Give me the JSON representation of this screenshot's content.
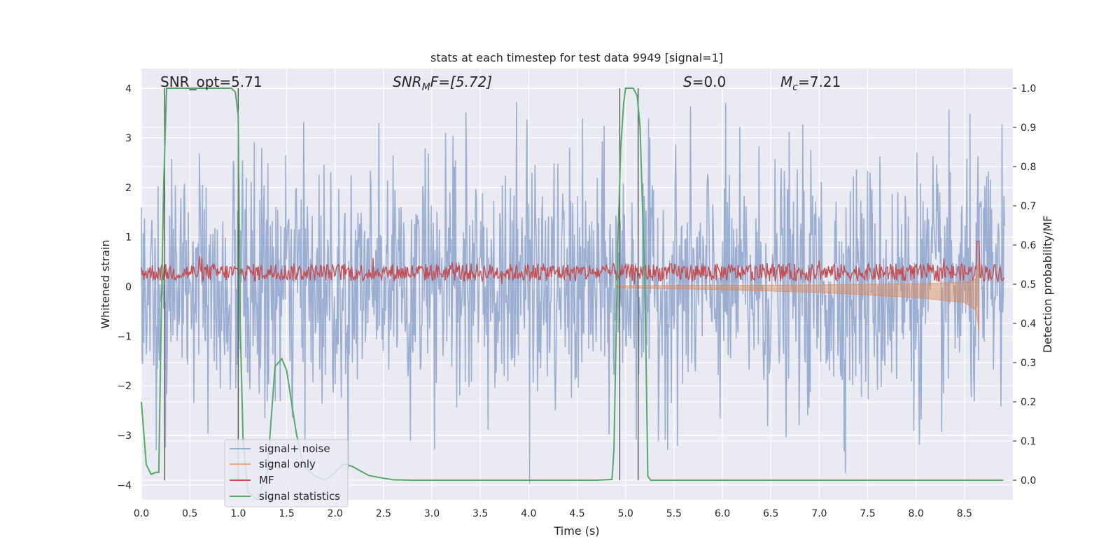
{
  "chart_data": {
    "type": "line",
    "title": "stats at each timestep for test data 9949 [signal=1]",
    "xlabel": "Time (s)",
    "ylabel_left": "Whitened strain",
    "ylabel_right": "Detection probability/MF",
    "xlim": [
      0.0,
      9.0
    ],
    "ylim_left": [
      -4.3,
      4.4
    ],
    "ylim_right": [
      -0.05,
      1.05
    ],
    "xticks": [
      "0.0",
      "0.5",
      "1.0",
      "1.5",
      "2.0",
      "2.5",
      "3.0",
      "3.5",
      "4.0",
      "4.5",
      "5.0",
      "5.5",
      "6.0",
      "6.5",
      "7.0",
      "7.5",
      "8.0",
      "8.5"
    ],
    "yticks_left": [
      "−4",
      "−3",
      "−2",
      "−1",
      "0",
      "1",
      "2",
      "3",
      "4"
    ],
    "yticks_right": [
      "0.0",
      "0.1",
      "0.2",
      "0.3",
      "0.4",
      "0.5",
      "0.6",
      "0.7",
      "0.8",
      "0.9",
      "1.0"
    ],
    "grid": true,
    "legend_placement": "lower-left",
    "annotations": {
      "snr_opt": "SNR_opt=5.71",
      "snr_mf_base": "SNR",
      "snr_mf_sub": "M",
      "snr_mf_rest": "F=[5.72]",
      "s_italic": "S",
      "s_rest": "=0.0",
      "mc_base": "M",
      "mc_sub": "c",
      "mc_rest": "=7.21"
    },
    "vertical_markers": [
      0.24,
      1.0,
      4.94,
      5.13
    ],
    "series": [
      {
        "name": "signal+ noise",
        "color": "#4c72b0",
        "axis": "left",
        "description_values": "noise-dominated whitened strain, roughly within [-4, 4]"
      },
      {
        "name": "signal only",
        "color": "#dd8452",
        "axis": "left",
        "envelope": {
          "x": [
            4.9,
            6.0,
            7.0,
            8.0,
            8.5,
            8.62,
            8.65
          ],
          "upper": [
            0.02,
            0.03,
            0.04,
            0.06,
            0.09,
            0.15,
            0.55
          ],
          "lower": [
            -0.02,
            -0.06,
            -0.12,
            -0.22,
            -0.32,
            -0.48,
            -0.9
          ]
        }
      },
      {
        "name": "MF",
        "color": "#c44e52",
        "axis": "right",
        "baseline": 0.53,
        "spike": {
          "x": 8.64,
          "y": 0.61
        }
      },
      {
        "name": "signal statistics",
        "color": "#55a868",
        "axis": "right",
        "x": [
          0.0,
          0.05,
          0.1,
          0.15,
          0.18,
          0.2,
          0.23,
          0.26,
          0.28,
          0.3,
          0.33,
          0.5,
          0.7,
          0.93,
          0.97,
          1.0,
          1.02,
          1.05,
          1.1,
          1.2,
          1.3,
          1.38,
          1.45,
          1.5,
          1.55,
          1.6,
          1.65,
          1.7,
          1.8,
          1.9,
          2.0,
          2.08,
          2.12,
          2.18,
          2.25,
          2.35,
          2.5,
          2.6,
          2.8,
          3.0,
          4.0,
          4.7,
          4.86,
          4.88,
          4.92,
          4.95,
          4.98,
          5.0,
          5.08,
          5.12,
          5.15,
          5.2,
          5.23,
          5.26,
          5.3,
          6.0,
          7.0,
          8.0,
          8.9
        ],
        "y": [
          0.2,
          0.04,
          0.015,
          0.02,
          0.02,
          0.35,
          0.75,
          1.0,
          1.0,
          1.0,
          1.0,
          1.0,
          1.0,
          1.0,
          0.99,
          0.93,
          0.4,
          0.1,
          -0.03,
          -0.05,
          0.02,
          0.29,
          0.31,
          0.28,
          0.2,
          0.12,
          0.06,
          0.03,
          0.01,
          0.0,
          0.02,
          0.04,
          0.04,
          0.035,
          0.025,
          0.012,
          0.005,
          0.001,
          0.0,
          0.0,
          0.0,
          0.0,
          0.002,
          0.08,
          0.6,
          0.85,
          0.96,
          1.0,
          1.0,
          0.98,
          0.9,
          0.5,
          0.01,
          0.0,
          0.0,
          0.0,
          0.0,
          0.0,
          0.0
        ]
      }
    ]
  },
  "legend": {
    "items": [
      {
        "label": "signal+ noise",
        "color": "#4c72b0"
      },
      {
        "label": "signal only",
        "color": "#dd8452"
      },
      {
        "label": "MF",
        "color": "#c44e52"
      },
      {
        "label": "signal statistics",
        "color": "#55a868"
      }
    ]
  }
}
